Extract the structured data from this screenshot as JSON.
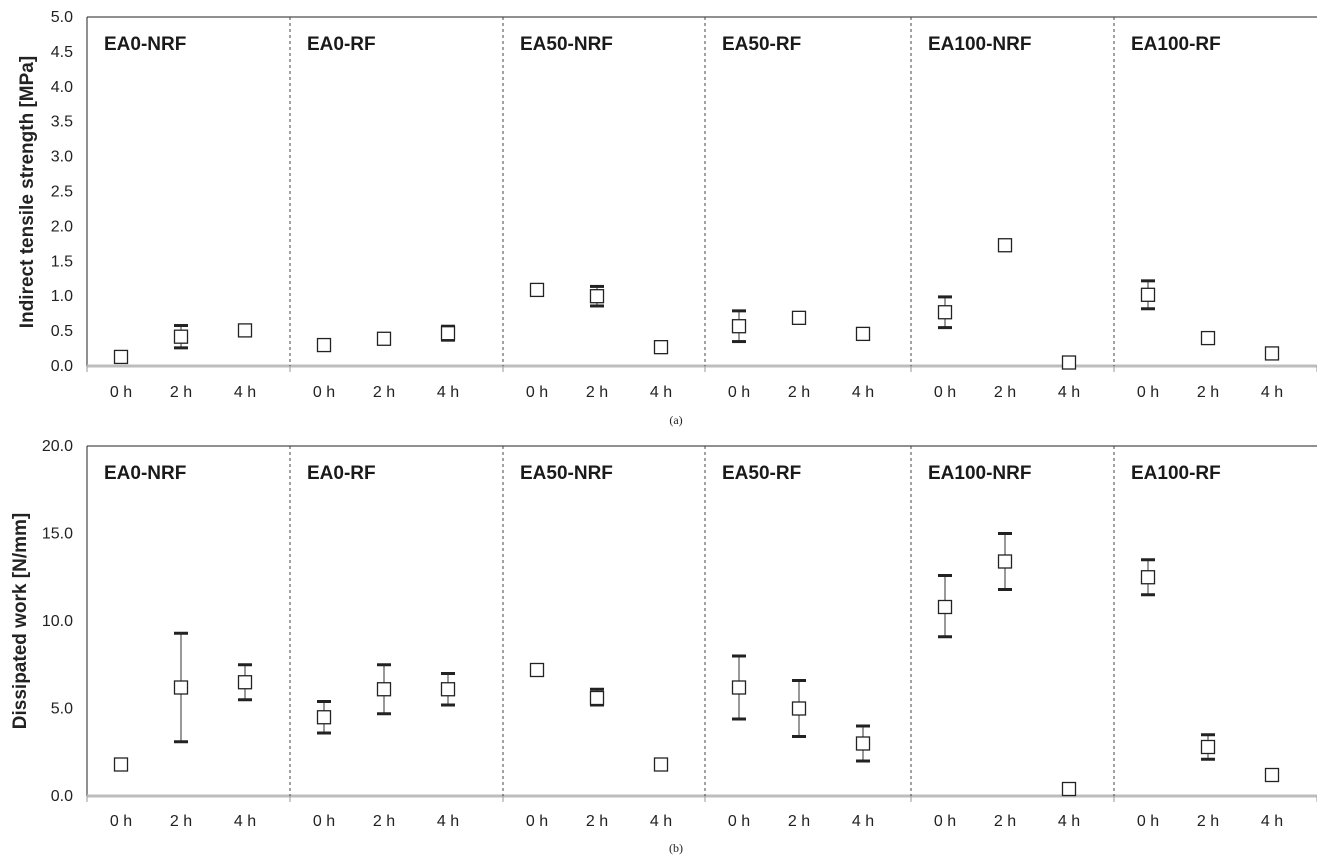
{
  "chart_data": [
    {
      "type": "scatter",
      "panel_label": "(a)",
      "ylabel": "Indirect tensile strength [MPa]",
      "ylim": [
        0,
        5.0
      ],
      "yticks": [
        "0.0",
        "0.5",
        "1.0",
        "1.5",
        "2.0",
        "2.5",
        "3.0",
        "3.5",
        "4.0",
        "4.5",
        "5.0"
      ],
      "groups": [
        "EA0-NRF",
        "EA0-RF",
        "EA50-NRF",
        "EA50-RF",
        "EA100-NRF",
        "EA100-RF"
      ],
      "categories": [
        "0 h",
        "2 h",
        "4 h"
      ],
      "marker": "open-square",
      "error_bars": true,
      "points": [
        [
          {
            "y": 0.13,
            "lo": 0.08,
            "hi": 0.18
          },
          {
            "y": 0.42,
            "lo": 0.26,
            "hi": 0.58
          },
          {
            "y": 0.51,
            "lo": 0.46,
            "hi": 0.56
          }
        ],
        [
          {
            "y": 0.3,
            "lo": 0.24,
            "hi": 0.36
          },
          {
            "y": 0.39,
            "lo": 0.33,
            "hi": 0.45
          },
          {
            "y": 0.47,
            "lo": 0.37,
            "hi": 0.57
          }
        ],
        [
          {
            "y": 1.09,
            "lo": 1.03,
            "hi": 1.15
          },
          {
            "y": 1.0,
            "lo": 0.86,
            "hi": 1.14
          },
          {
            "y": 0.27,
            "lo": 0.22,
            "hi": 0.32
          }
        ],
        [
          {
            "y": 0.57,
            "lo": 0.35,
            "hi": 0.79
          },
          {
            "y": 0.69,
            "lo": 0.63,
            "hi": 0.75
          },
          {
            "y": 0.46,
            "lo": 0.41,
            "hi": 0.51
          }
        ],
        [
          {
            "y": 0.77,
            "lo": 0.55,
            "hi": 0.99
          },
          {
            "y": 1.73,
            "lo": 1.67,
            "hi": 1.79
          },
          {
            "y": 0.05,
            "lo": 0.02,
            "hi": 0.09
          }
        ],
        [
          {
            "y": 1.02,
            "lo": 0.82,
            "hi": 1.22
          },
          {
            "y": 0.4,
            "lo": 0.33,
            "hi": 0.47
          },
          {
            "y": 0.18,
            "lo": 0.12,
            "hi": 0.24
          }
        ]
      ]
    },
    {
      "type": "scatter",
      "panel_label": "(b)",
      "ylabel": "Dissipated work [N/mm]",
      "ylim": [
        0,
        20.0
      ],
      "yticks": [
        "0.0",
        "5.0",
        "10.0",
        "15.0",
        "20.0"
      ],
      "yticks_values": [
        0,
        5,
        10,
        15,
        20
      ],
      "groups": [
        "EA0-NRF",
        "EA0-RF",
        "EA50-NRF",
        "EA50-RF",
        "EA100-NRF",
        "EA100-RF"
      ],
      "categories": [
        "0 h",
        "2 h",
        "4 h"
      ],
      "marker": "open-square",
      "error_bars": true,
      "points": [
        [
          {
            "y": 1.8,
            "lo": 1.6,
            "hi": 2.1
          },
          {
            "y": 6.2,
            "lo": 3.1,
            "hi": 9.3
          },
          {
            "y": 6.5,
            "lo": 5.5,
            "hi": 7.5
          }
        ],
        [
          {
            "y": 4.5,
            "lo": 3.6,
            "hi": 5.4
          },
          {
            "y": 6.1,
            "lo": 4.7,
            "hi": 7.5
          },
          {
            "y": 6.1,
            "lo": 5.2,
            "hi": 7.0
          }
        ],
        [
          {
            "y": 7.2,
            "lo": 7.0,
            "hi": 7.4
          },
          {
            "y": 5.6,
            "lo": 5.2,
            "hi": 6.1
          },
          {
            "y": 1.8,
            "lo": 1.6,
            "hi": 2.0
          }
        ],
        [
          {
            "y": 6.2,
            "lo": 4.4,
            "hi": 8.0
          },
          {
            "y": 5.0,
            "lo": 3.4,
            "hi": 6.6
          },
          {
            "y": 3.0,
            "lo": 2.0,
            "hi": 4.0
          }
        ],
        [
          {
            "y": 10.8,
            "lo": 9.1,
            "hi": 12.6
          },
          {
            "y": 13.4,
            "lo": 11.8,
            "hi": 15.0
          },
          {
            "y": 0.4,
            "lo": 0.2,
            "hi": 0.6
          }
        ],
        [
          {
            "y": 12.5,
            "lo": 11.5,
            "hi": 13.5
          },
          {
            "y": 2.8,
            "lo": 2.1,
            "hi": 3.5
          },
          {
            "y": 1.2,
            "lo": 1.0,
            "hi": 1.4
          }
        ]
      ]
    }
  ],
  "colors": {
    "marker_stroke": "#222222",
    "marker_fill": "#ffffff",
    "divider": "#444444",
    "frame": "#222222"
  }
}
